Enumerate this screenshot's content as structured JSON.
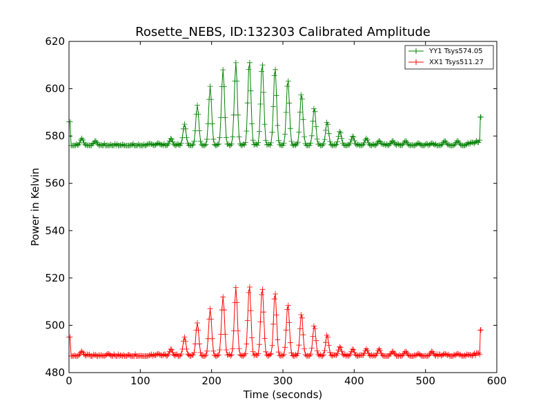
{
  "chart_data": {
    "type": "line",
    "title": "Rosette_NEBS, ID:132303 Calibrated Amplitude",
    "xlabel": "Time (seconds)",
    "ylabel": "Power in Kelvin",
    "xlim": [
      0,
      600
    ],
    "ylim": [
      480,
      620
    ],
    "xticks": [
      "0",
      "100",
      "200",
      "300",
      "400",
      "500",
      "600"
    ],
    "yticks": [
      "480",
      "500",
      "520",
      "540",
      "560",
      "580",
      "600",
      "620"
    ],
    "grid": false,
    "legend_position": "top-right",
    "marker": "plus",
    "series": [
      {
        "name": "YY1 Tsys574.05",
        "color": "#008000",
        "baseline": 576,
        "start_spike": 586,
        "end_value": 578,
        "end_spike": 588,
        "peaks": [
          {
            "x": 18,
            "y": 579
          },
          {
            "x": 37,
            "y": 578
          },
          {
            "x": 125,
            "y": 577
          },
          {
            "x": 143,
            "y": 579
          },
          {
            "x": 162,
            "y": 585
          },
          {
            "x": 180,
            "y": 593
          },
          {
            "x": 198,
            "y": 601
          },
          {
            "x": 216,
            "y": 608
          },
          {
            "x": 234,
            "y": 611
          },
          {
            "x": 253,
            "y": 612
          },
          {
            "x": 271,
            "y": 611
          },
          {
            "x": 289,
            "y": 609
          },
          {
            "x": 307,
            "y": 604
          },
          {
            "x": 326,
            "y": 598
          },
          {
            "x": 344,
            "y": 592
          },
          {
            "x": 362,
            "y": 586
          },
          {
            "x": 380,
            "y": 582
          },
          {
            "x": 398,
            "y": 580
          },
          {
            "x": 417,
            "y": 579
          },
          {
            "x": 435,
            "y": 578
          },
          {
            "x": 454,
            "y": 578
          },
          {
            "x": 472,
            "y": 578
          },
          {
            "x": 490,
            "y": 577
          },
          {
            "x": 509,
            "y": 577
          },
          {
            "x": 527,
            "y": 578
          },
          {
            "x": 545,
            "y": 578
          }
        ]
      },
      {
        "name": "XX1 Tsys511.27",
        "color": "#ff0000",
        "baseline": 487,
        "start_spike": 495,
        "end_value": 488,
        "end_spike": 498,
        "peaks": [
          {
            "x": 18,
            "y": 489
          },
          {
            "x": 55,
            "y": 488
          },
          {
            "x": 125,
            "y": 488
          },
          {
            "x": 143,
            "y": 490
          },
          {
            "x": 162,
            "y": 495
          },
          {
            "x": 180,
            "y": 501
          },
          {
            "x": 198,
            "y": 507
          },
          {
            "x": 216,
            "y": 512
          },
          {
            "x": 234,
            "y": 516
          },
          {
            "x": 253,
            "y": 517
          },
          {
            "x": 271,
            "y": 516
          },
          {
            "x": 289,
            "y": 514
          },
          {
            "x": 307,
            "y": 509
          },
          {
            "x": 326,
            "y": 505
          },
          {
            "x": 344,
            "y": 500
          },
          {
            "x": 362,
            "y": 496
          },
          {
            "x": 380,
            "y": 491
          },
          {
            "x": 398,
            "y": 490
          },
          {
            "x": 417,
            "y": 490
          },
          {
            "x": 435,
            "y": 490
          },
          {
            "x": 454,
            "y": 489
          },
          {
            "x": 472,
            "y": 489
          },
          {
            "x": 490,
            "y": 488
          },
          {
            "x": 509,
            "y": 489
          },
          {
            "x": 527,
            "y": 488
          },
          {
            "x": 545,
            "y": 488
          }
        ]
      }
    ]
  }
}
